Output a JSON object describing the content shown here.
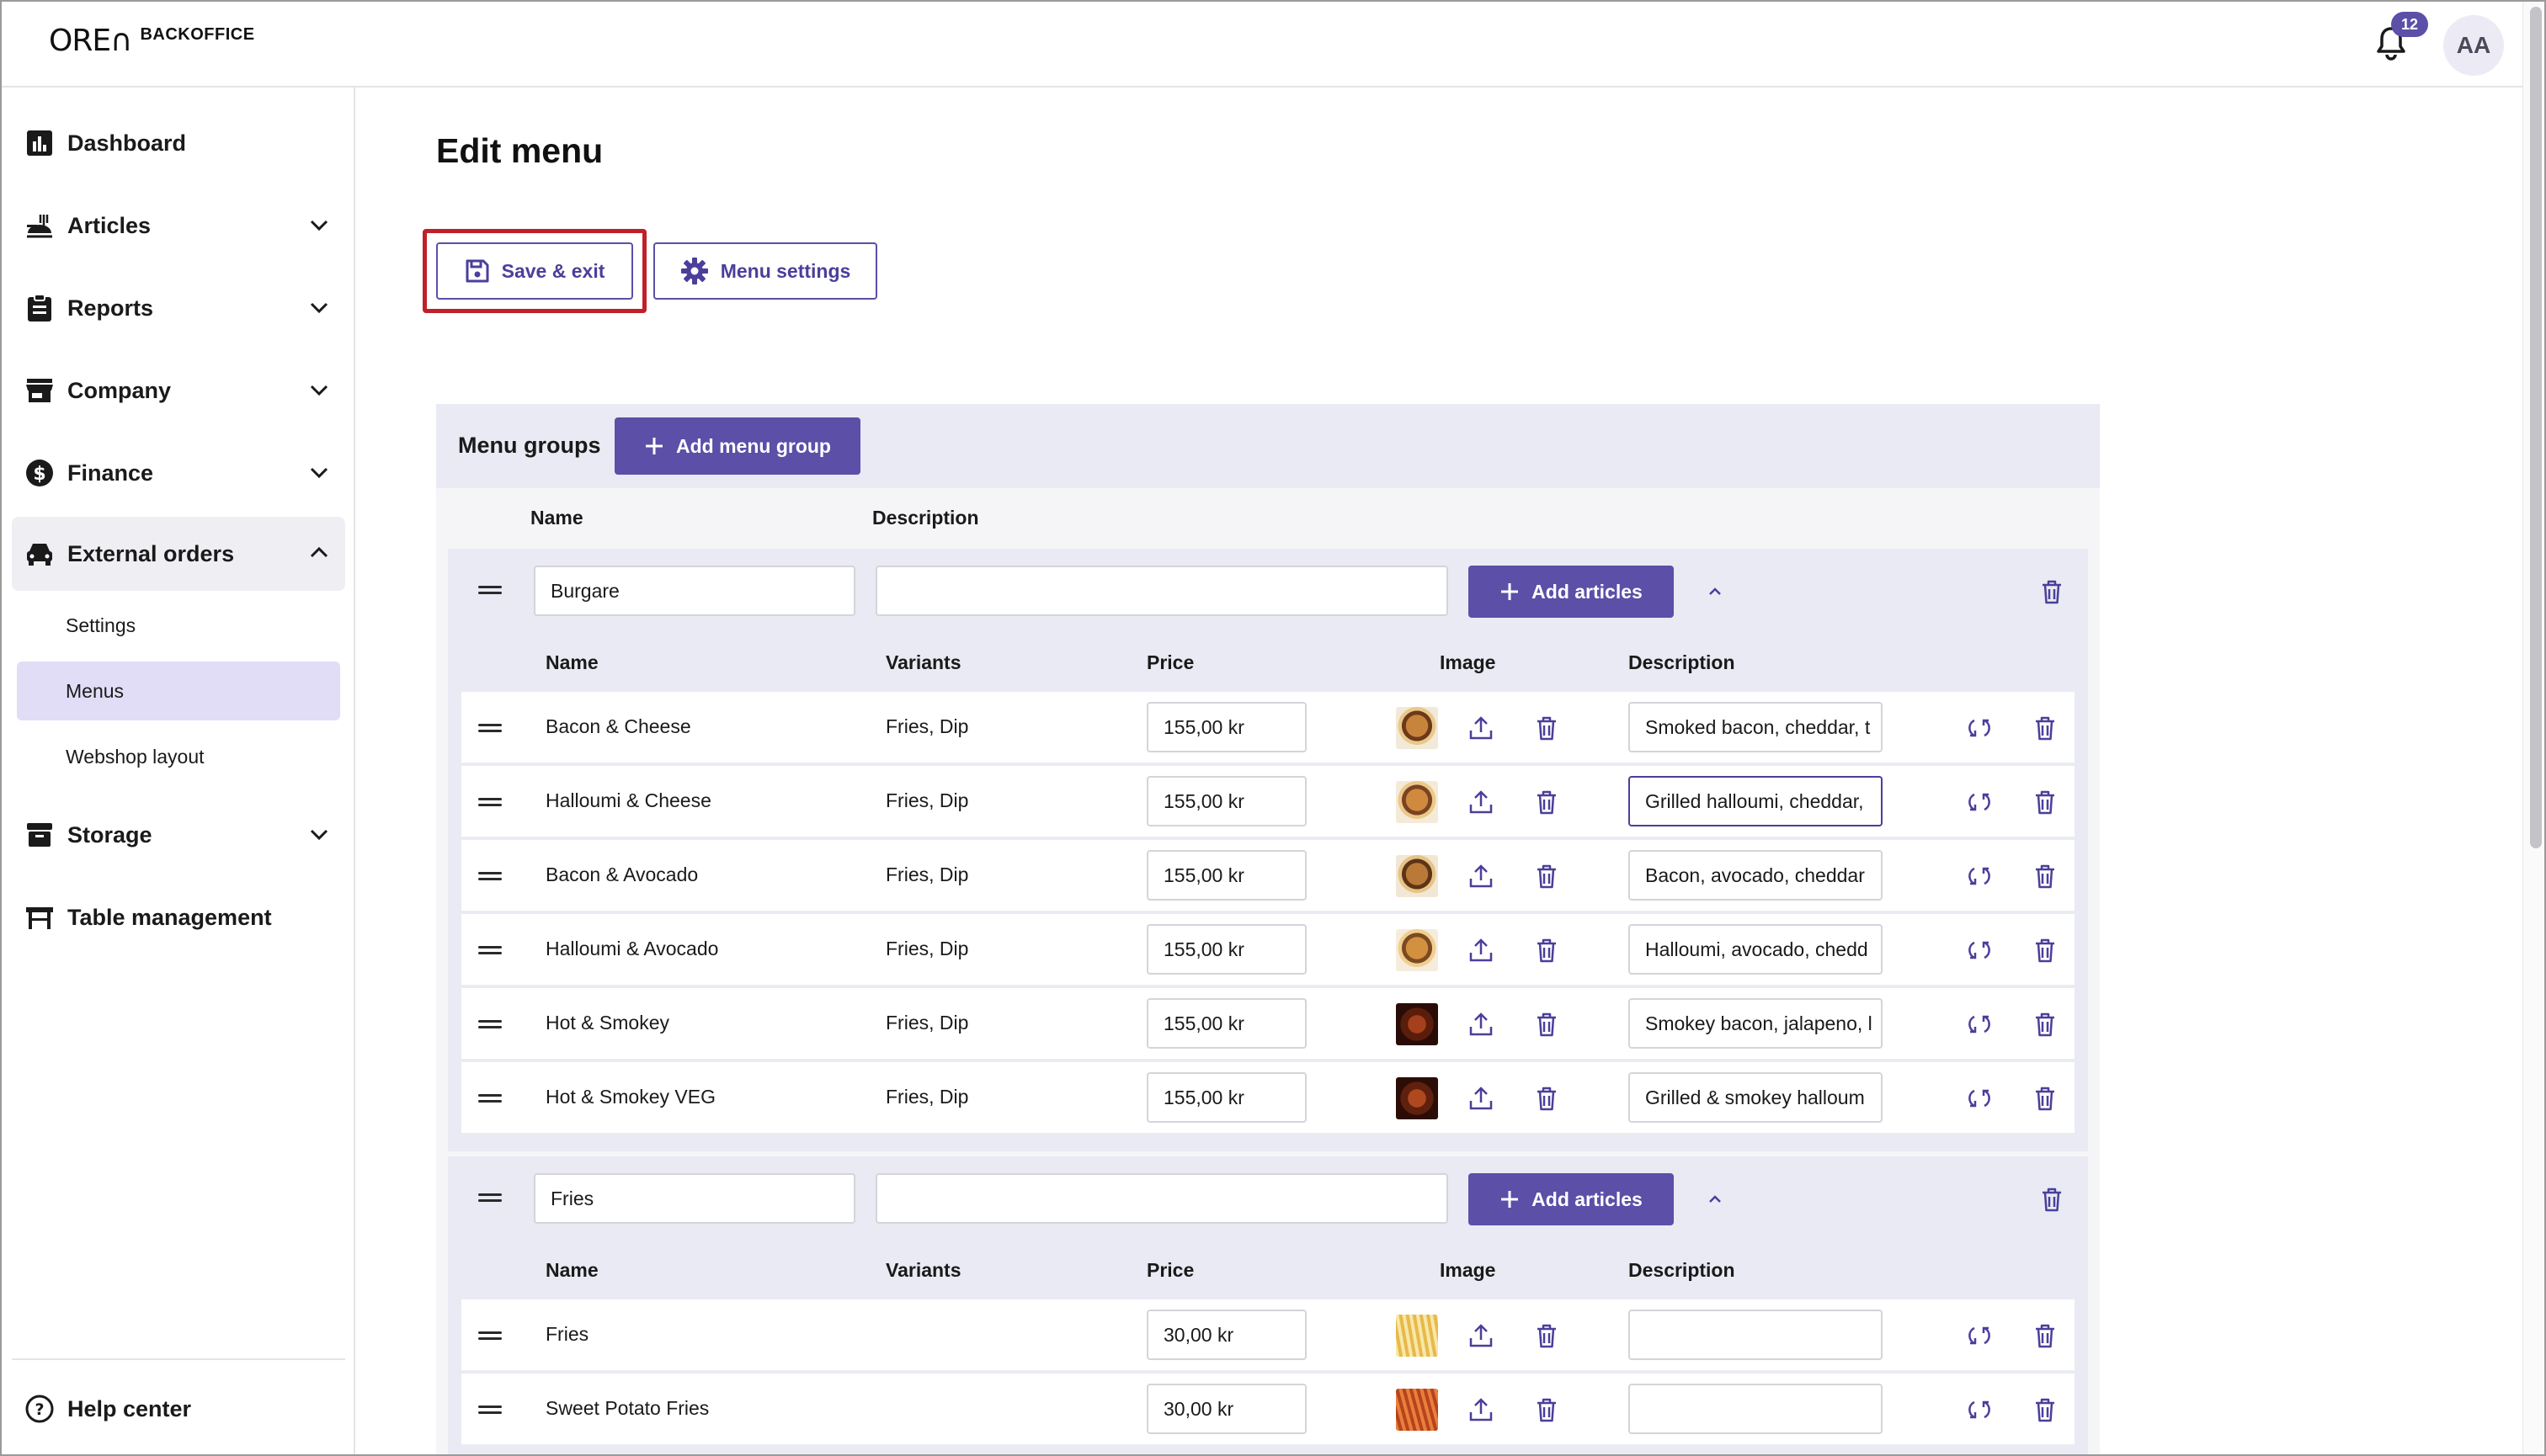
{
  "brand": {
    "logo_mark": "ORE∩",
    "logo_text": "BACKOFFICE"
  },
  "header": {
    "notification_count": "12",
    "avatar_initials": "AA"
  },
  "sidebar": {
    "items": [
      {
        "label": "Dashboard",
        "icon": "bar-chart-icon"
      },
      {
        "label": "Articles",
        "icon": "food-icon"
      },
      {
        "label": "Reports",
        "icon": "clipboard-icon"
      },
      {
        "label": "Company",
        "icon": "store-icon"
      },
      {
        "label": "Finance",
        "icon": "dollar-icon"
      },
      {
        "label": "External orders",
        "icon": "car-icon"
      },
      {
        "label": "Storage",
        "icon": "box-icon"
      },
      {
        "label": "Table management",
        "icon": "table-icon"
      }
    ],
    "sub_items": [
      "Settings",
      "Menus",
      "Webshop layout"
    ],
    "help": "Help center"
  },
  "page": {
    "title": "Edit menu",
    "save_exit_label": "Save & exit",
    "menu_settings_label": "Menu settings"
  },
  "menu_groups": {
    "title": "Menu groups",
    "add_group_label": "Add menu group",
    "col_name": "Name",
    "col_description": "Description",
    "add_articles_label": "Add articles",
    "article_cols": {
      "name": "Name",
      "variants": "Variants",
      "price": "Price",
      "image": "Image",
      "description": "Description"
    },
    "groups": [
      {
        "name": "Burgare",
        "description": "",
        "articles": [
          {
            "name": "Bacon & Cheese",
            "variants": "Fries, Dip",
            "price": "155,00 kr",
            "description": "Smoked bacon, cheddar, t"
          },
          {
            "name": "Halloumi & Cheese",
            "variants": "Fries, Dip",
            "price": "155,00 kr",
            "description": "Grilled halloumi, cheddar,"
          },
          {
            "name": "Bacon & Avocado",
            "variants": "Fries, Dip",
            "price": "155,00 kr",
            "description": "Bacon, avocado,  cheddar"
          },
          {
            "name": "Halloumi & Avocado",
            "variants": "Fries, Dip",
            "price": "155,00 kr",
            "description": "Halloumi, avocado, chedd"
          },
          {
            "name": "Hot & Smokey",
            "variants": "Fries, Dip",
            "price": "155,00 kr",
            "description": "Smokey bacon, jalapeno, l"
          },
          {
            "name": "Hot & Smokey VEG",
            "variants": "Fries, Dip",
            "price": "155,00 kr",
            "description": "Grilled & smokey halloum"
          }
        ]
      },
      {
        "name": "Fries",
        "description": "",
        "articles": [
          {
            "name": "Fries",
            "variants": "",
            "price": "30,00 kr",
            "description": ""
          },
          {
            "name": "Sweet Potato Fries",
            "variants": "",
            "price": "30,00 kr",
            "description": ""
          }
        ]
      }
    ]
  },
  "colors": {
    "accent": "#5b4fa8",
    "highlight": "#c0202a",
    "panel": "#e9eaf3"
  }
}
